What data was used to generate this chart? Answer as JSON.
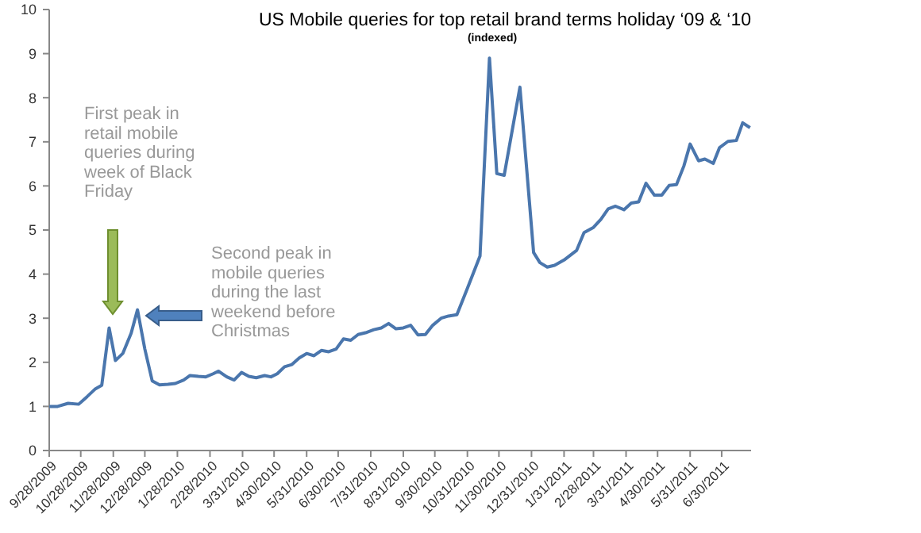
{
  "chart_data": {
    "type": "line",
    "title": "US Mobile queries for top retail brand terms holiday ‘09 & ‘10",
    "subtitle": "(indexed)",
    "x": [
      "2009-09-28",
      "2009-10-06",
      "2009-10-16",
      "2009-10-26",
      "2009-11-03",
      "2009-11-11",
      "2009-11-17",
      "2009-11-24",
      "2009-11-30",
      "2009-12-07",
      "2009-12-15",
      "2009-12-21",
      "2009-12-28",
      "2010-01-04",
      "2010-01-11",
      "2010-01-19",
      "2010-01-26",
      "2010-02-03",
      "2010-02-09",
      "2010-02-17",
      "2010-02-24",
      "2010-03-03",
      "2010-03-08",
      "2010-03-16",
      "2010-03-23",
      "2010-03-30",
      "2010-04-06",
      "2010-04-13",
      "2010-04-21",
      "2010-04-27",
      "2010-05-03",
      "2010-05-10",
      "2010-05-17",
      "2010-05-24",
      "2010-05-31",
      "2010-06-07",
      "2010-06-14",
      "2010-06-21",
      "2010-06-28",
      "2010-07-05",
      "2010-07-12",
      "2010-07-19",
      "2010-07-26",
      "2010-08-03",
      "2010-08-10",
      "2010-08-17",
      "2010-08-24",
      "2010-08-31",
      "2010-09-07",
      "2010-09-14",
      "2010-09-21",
      "2010-09-28",
      "2010-10-06",
      "2010-10-13",
      "2010-10-21",
      "2010-10-31",
      "2010-11-12",
      "2010-11-21",
      "2010-11-28",
      "2010-12-05",
      "2010-12-20",
      "2011-01-02",
      "2011-01-08",
      "2011-01-15",
      "2011-01-22",
      "2011-01-31",
      "2011-02-12",
      "2011-02-19",
      "2011-02-28",
      "2011-03-07",
      "2011-03-14",
      "2011-03-21",
      "2011-03-29",
      "2011-04-05",
      "2011-04-12",
      "2011-04-19",
      "2011-04-27",
      "2011-05-04",
      "2011-05-11",
      "2011-05-18",
      "2011-05-25",
      "2011-05-31",
      "2011-06-08",
      "2011-06-14",
      "2011-06-22",
      "2011-06-28",
      "2011-07-06",
      "2011-07-14",
      "2011-07-20",
      "2011-07-27"
    ],
    "series": [
      {
        "color": "#4a76ad",
        "values": [
          1.0,
          1.0,
          1.07,
          1.05,
          1.22,
          1.4,
          1.48,
          2.78,
          2.04,
          2.2,
          2.66,
          3.19,
          2.3,
          1.58,
          1.49,
          1.5,
          1.52,
          1.6,
          1.7,
          1.68,
          1.67,
          1.74,
          1.8,
          1.67,
          1.6,
          1.77,
          1.68,
          1.65,
          1.7,
          1.67,
          1.74,
          1.9,
          1.95,
          2.1,
          2.2,
          2.15,
          2.27,
          2.24,
          2.3,
          2.53,
          2.5,
          2.63,
          2.67,
          2.74,
          2.78,
          2.88,
          2.76,
          2.78,
          2.84,
          2.62,
          2.63,
          2.84,
          3.0,
          3.05,
          3.08,
          3.68,
          4.41,
          8.9,
          6.28,
          6.24,
          8.24,
          4.49,
          4.26,
          4.16,
          4.2,
          4.32,
          4.54,
          4.94,
          5.06,
          5.24,
          5.48,
          5.54,
          5.46,
          5.61,
          5.64,
          6.06,
          5.79,
          5.79,
          6.01,
          6.03,
          6.45,
          6.95,
          6.57,
          6.61,
          6.51,
          6.87,
          7.01,
          7.03,
          7.43,
          7.32
        ]
      }
    ],
    "xlim": [
      "2009-09-28",
      "2011-07-28"
    ],
    "xticks": [
      {
        "value": "2009-09-28",
        "label": "9/28/2009"
      },
      {
        "value": "2009-10-28",
        "label": "10/28/2009"
      },
      {
        "value": "2009-11-28",
        "label": "11/28/2009"
      },
      {
        "value": "2009-12-28",
        "label": "12/28/2009"
      },
      {
        "value": "2010-01-28",
        "label": "1/28/2010"
      },
      {
        "value": "2010-02-28",
        "label": "2/28/2010"
      },
      {
        "value": "2010-03-31",
        "label": "3/31/2010"
      },
      {
        "value": "2010-04-30",
        "label": "4/30/2010"
      },
      {
        "value": "2010-05-31",
        "label": "5/31/2010"
      },
      {
        "value": "2010-06-30",
        "label": "6/30/2010"
      },
      {
        "value": "2010-07-31",
        "label": "7/31/2010"
      },
      {
        "value": "2010-08-31",
        "label": "8/31/2010"
      },
      {
        "value": "2010-09-30",
        "label": "9/30/2010"
      },
      {
        "value": "2010-10-31",
        "label": "10/31/2010"
      },
      {
        "value": "2010-11-30",
        "label": "11/30/2010"
      },
      {
        "value": "2010-12-31",
        "label": "12/31/2010"
      },
      {
        "value": "2011-01-31",
        "label": "1/31/2011"
      },
      {
        "value": "2011-02-28",
        "label": "2/28/2011"
      },
      {
        "value": "2011-03-31",
        "label": "3/31/2011"
      },
      {
        "value": "2011-04-30",
        "label": "4/30/2011"
      },
      {
        "value": "2011-05-31",
        "label": "5/31/2011"
      },
      {
        "value": "2011-06-30",
        "label": "6/30/2011"
      }
    ],
    "ylim": [
      0,
      10
    ],
    "yticks": [
      0,
      1,
      2,
      3,
      4,
      5,
      6,
      7,
      8,
      9,
      10
    ],
    "grid": false,
    "marker": "none",
    "line_style": "solid",
    "annotations": [
      "First peak in retail mobile queries during week of Black Friday",
      "Second peak in mobile queries during the last weekend before Christmas"
    ]
  }
}
